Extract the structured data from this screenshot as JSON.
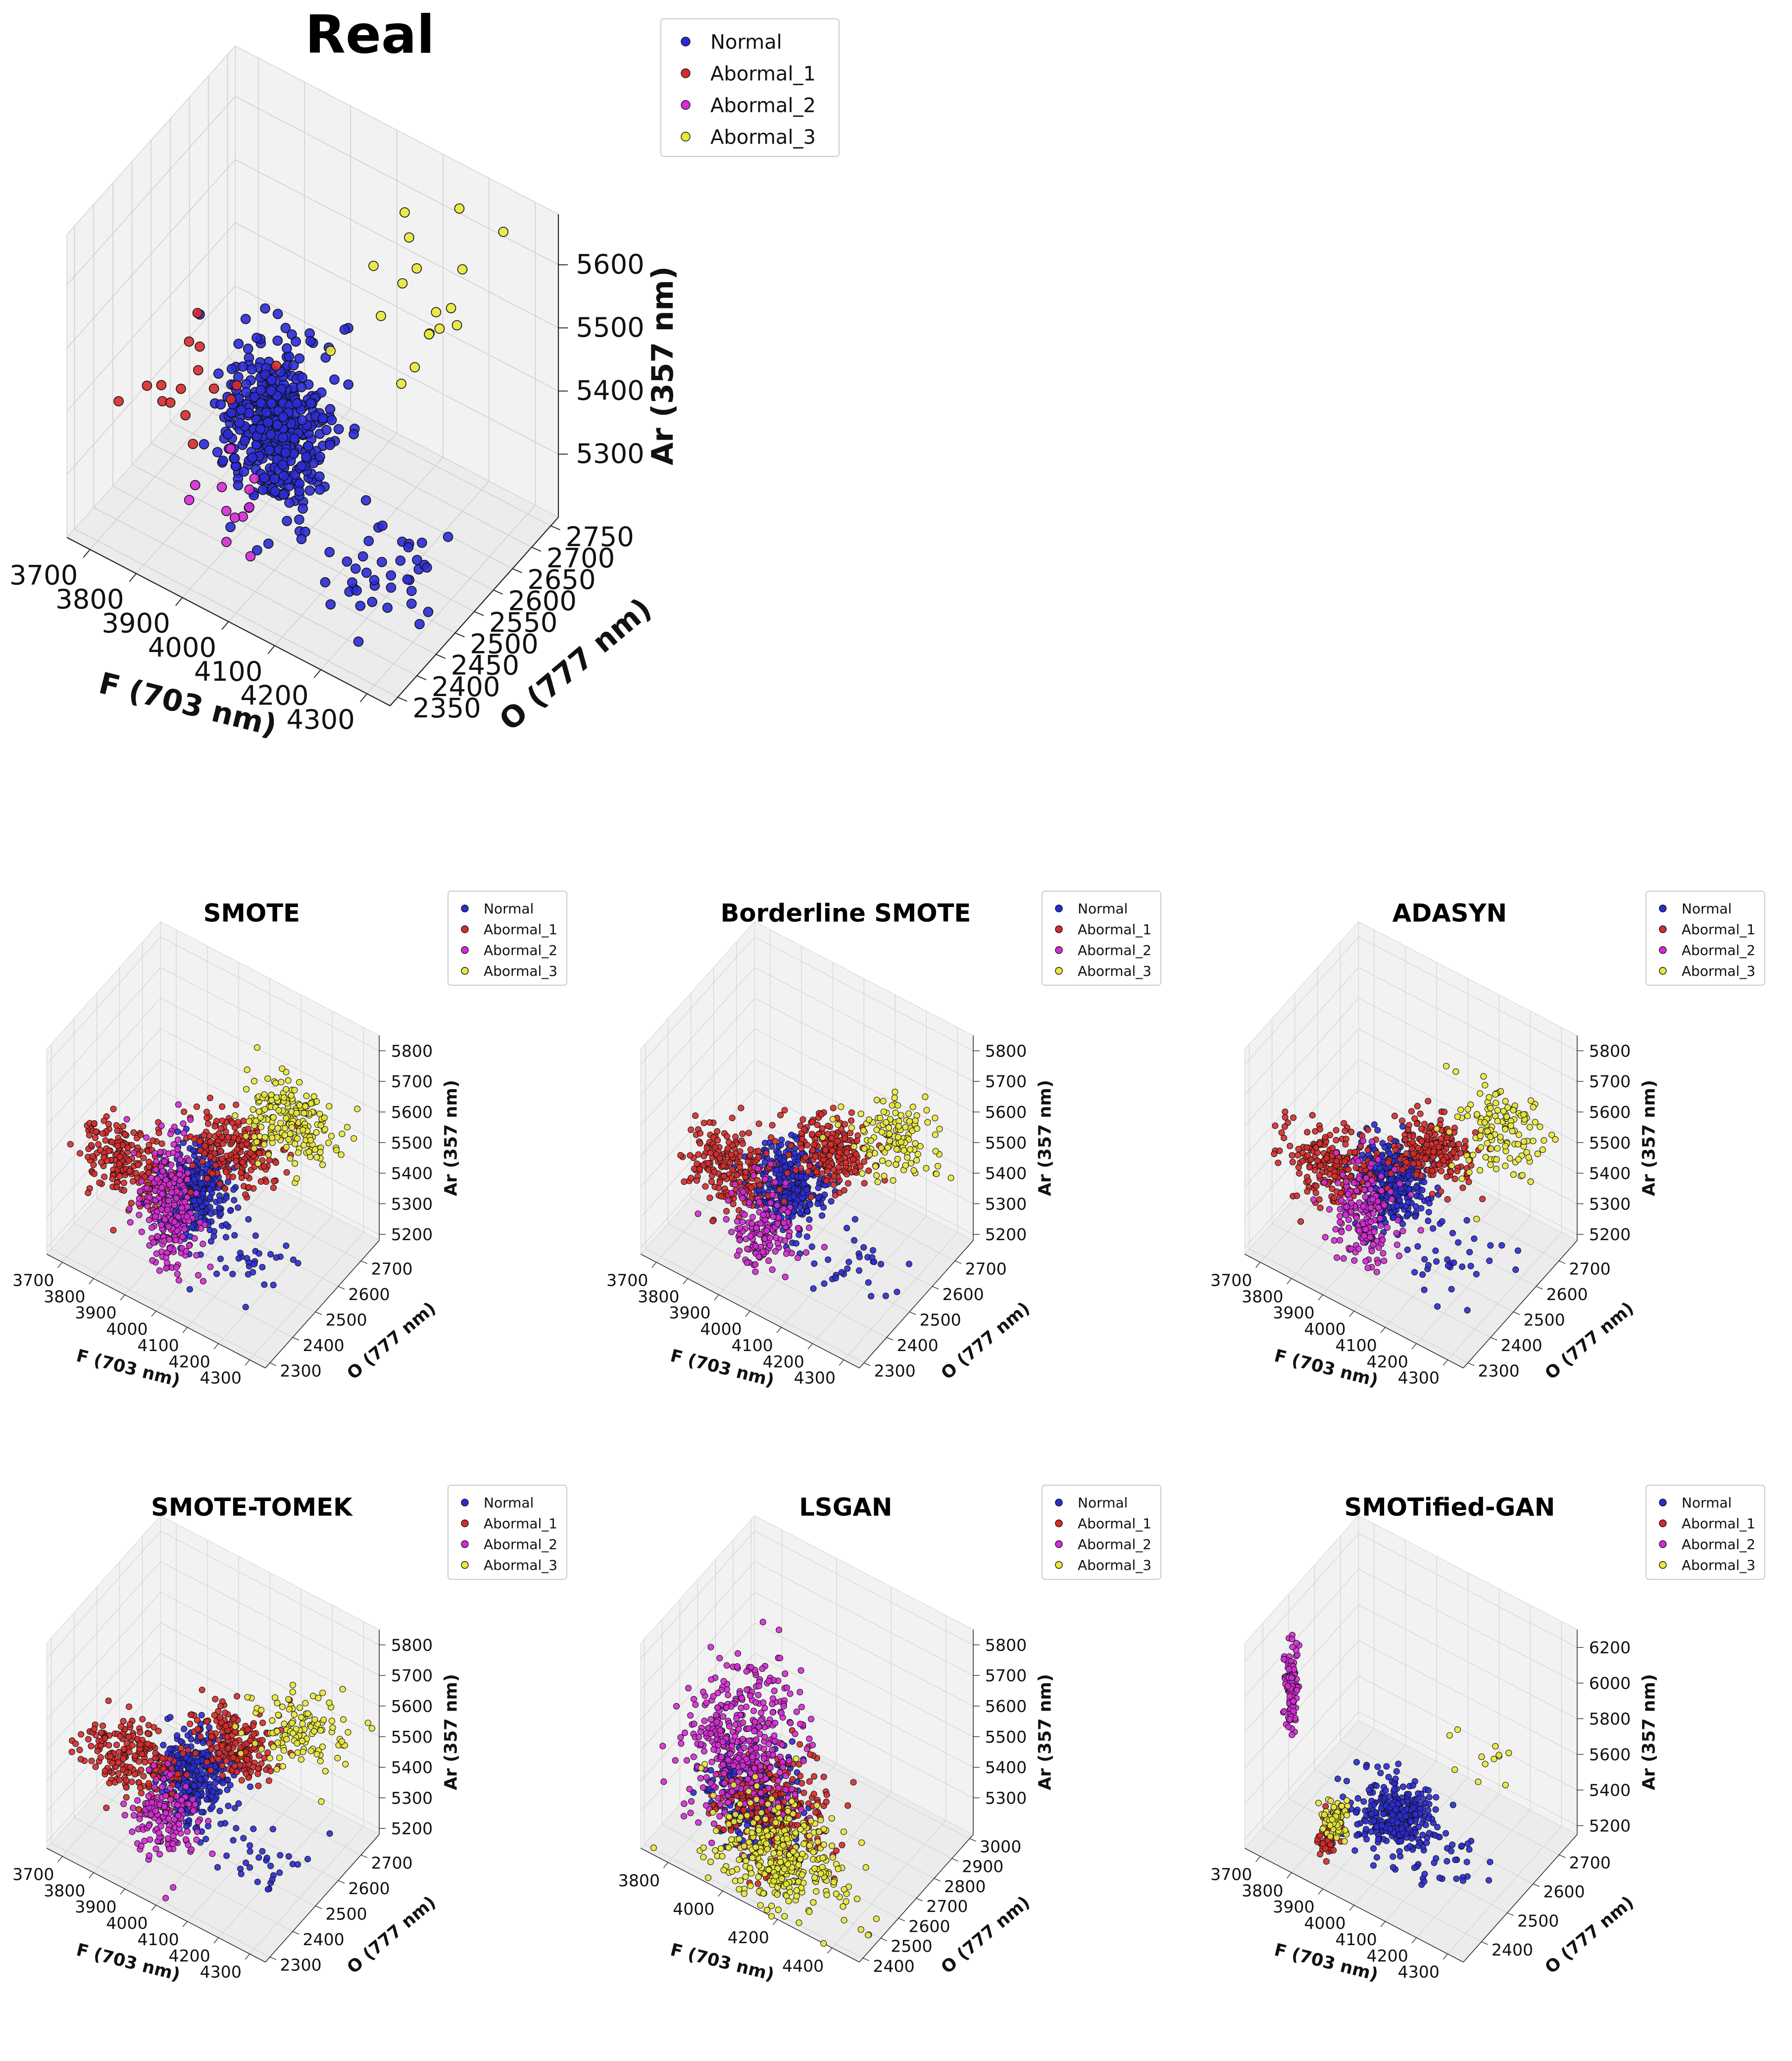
{
  "legend": {
    "entries": [
      "Normal",
      "Abormal_1",
      "Abormal_2",
      "Abormal_3"
    ],
    "colors": [
      "#2b2bd6",
      "#d62b2b",
      "#d62bd6",
      "#e8e83a"
    ]
  },
  "chart_data": [
    {
      "type": "scatter",
      "title": "Real",
      "xlabel": "F (703 nm)",
      "ylabel": "O (777 nm)",
      "zlabel": "Ar (357 nm)",
      "xticks": [
        "3700",
        "3800",
        "3900",
        "4000",
        "4100",
        "4200",
        "4300"
      ],
      "yticks": [
        "2350",
        "2400",
        "2450",
        "2500",
        "2550",
        "2600",
        "2650",
        "2700",
        "2750"
      ],
      "zticks": [
        "5300",
        "5400",
        "5500",
        "5600"
      ],
      "xlim": [
        3650,
        4350
      ],
      "ylim": [
        2330,
        2770
      ],
      "zlim": [
        5200,
        5680
      ],
      "series": [
        {
          "name": "Normal",
          "clusters": [
            {
              "cx": 3980,
              "cy": 2480,
              "cz": 5400,
              "sx": 50,
              "sy": 40,
              "sz": 55,
              "n": 420
            },
            {
              "cx": 4150,
              "cy": 2520,
              "cz": 5215,
              "sx": 60,
              "sy": 60,
              "sz": 12,
              "n": 40
            }
          ]
        },
        {
          "name": "Abormal_1",
          "clusters": [
            {
              "cx": 3800,
              "cy": 2450,
              "cz": 5420,
              "sx": 60,
              "sy": 40,
              "sz": 40,
              "n": 16
            }
          ]
        },
        {
          "name": "Abormal_2",
          "clusters": [
            {
              "cx": 3930,
              "cy": 2420,
              "cz": 5300,
              "sx": 50,
              "sy": 40,
              "sz": 40,
              "n": 12
            }
          ]
        },
        {
          "name": "Abormal_3",
          "clusters": [
            {
              "cx": 4180,
              "cy": 2620,
              "cz": 5590,
              "sx": 80,
              "sy": 60,
              "sz": 40,
              "n": 18
            }
          ]
        }
      ]
    },
    {
      "type": "scatter",
      "title": "SMOTE",
      "xlabel": "F (703 nm)",
      "ylabel": "O (777 nm)",
      "zlabel": "Ar (357 nm)",
      "xticks": [
        "3700",
        "3800",
        "3900",
        "4000",
        "4100",
        "4200",
        "4300"
      ],
      "yticks": [
        "2300",
        "2400",
        "2500",
        "2600",
        "2700"
      ],
      "zticks": [
        "5200",
        "5300",
        "5400",
        "5500",
        "5600",
        "5700",
        "5800"
      ],
      "xlim": [
        3650,
        4350
      ],
      "ylim": [
        2280,
        2780
      ],
      "zlim": [
        5180,
        5850
      ],
      "series": [
        {
          "name": "Normal",
          "clusters": [
            {
              "cx": 3980,
              "cy": 2480,
              "cz": 5400,
              "sx": 50,
              "sy": 40,
              "sz": 60,
              "n": 330
            },
            {
              "cx": 4150,
              "cy": 2520,
              "cz": 5210,
              "sx": 60,
              "sy": 60,
              "sz": 12,
              "n": 30
            }
          ]
        },
        {
          "name": "Abormal_1",
          "clusters": [
            {
              "cx": 3780,
              "cy": 2440,
              "cz": 5420,
              "sx": 70,
              "sy": 40,
              "sz": 50,
              "n": 200
            },
            {
              "cx": 4050,
              "cy": 2560,
              "cz": 5500,
              "sx": 70,
              "sy": 40,
              "sz": 40,
              "n": 200
            }
          ]
        },
        {
          "name": "Abormal_2",
          "clusters": [
            {
              "cx": 3930,
              "cy": 2430,
              "cz": 5350,
              "sx": 40,
              "sy": 30,
              "sz": 110,
              "n": 250
            }
          ]
        },
        {
          "name": "Abormal_3",
          "clusters": [
            {
              "cx": 4180,
              "cy": 2620,
              "cz": 5620,
              "sx": 70,
              "sy": 50,
              "sz": 45,
              "n": 200
            }
          ]
        }
      ]
    },
    {
      "type": "scatter",
      "title": "Borderline SMOTE",
      "xlabel": "F (703 nm)",
      "ylabel": "O (777 nm)",
      "zlabel": "Ar (357 nm)",
      "xticks": [
        "3700",
        "3800",
        "3900",
        "4000",
        "4100",
        "4200",
        "4300"
      ],
      "yticks": [
        "2300",
        "2400",
        "2500",
        "2600",
        "2700"
      ],
      "zticks": [
        "5200",
        "5300",
        "5400",
        "5500",
        "5600",
        "5700",
        "5800"
      ],
      "xlim": [
        3650,
        4350
      ],
      "ylim": [
        2280,
        2780
      ],
      "zlim": [
        5180,
        5850
      ],
      "series": [
        {
          "name": "Normal",
          "clusters": [
            {
              "cx": 3980,
              "cy": 2480,
              "cz": 5420,
              "sx": 50,
              "sy": 40,
              "sz": 60,
              "n": 330
            },
            {
              "cx": 4150,
              "cy": 2520,
              "cz": 5210,
              "sx": 60,
              "sy": 60,
              "sz": 12,
              "n": 30
            }
          ]
        },
        {
          "name": "Abormal_1",
          "clusters": [
            {
              "cx": 3820,
              "cy": 2440,
              "cz": 5420,
              "sx": 70,
              "sy": 40,
              "sz": 45,
              "n": 200
            },
            {
              "cx": 4050,
              "cy": 2560,
              "cz": 5500,
              "sx": 60,
              "sy": 40,
              "sz": 40,
              "n": 200
            }
          ]
        },
        {
          "name": "Abormal_2",
          "clusters": [
            {
              "cx": 3940,
              "cy": 2420,
              "cz": 5300,
              "sx": 50,
              "sy": 40,
              "sz": 60,
              "n": 150
            }
          ]
        },
        {
          "name": "Abormal_3",
          "clusters": [
            {
              "cx": 4200,
              "cy": 2640,
              "cz": 5560,
              "sx": 70,
              "sy": 50,
              "sz": 40,
              "n": 120
            }
          ]
        }
      ]
    },
    {
      "type": "scatter",
      "title": "ADASYN",
      "xlabel": "F (703 nm)",
      "ylabel": "O (777 nm)",
      "zlabel": "Ar (357 nm)",
      "xticks": [
        "3700",
        "3800",
        "3900",
        "4000",
        "4100",
        "4200",
        "4300"
      ],
      "yticks": [
        "2300",
        "2400",
        "2500",
        "2600",
        "2700"
      ],
      "zticks": [
        "5200",
        "5300",
        "5400",
        "5500",
        "5600",
        "5700",
        "5800"
      ],
      "xlim": [
        3650,
        4350
      ],
      "ylim": [
        2280,
        2780
      ],
      "zlim": [
        5180,
        5850
      ],
      "series": [
        {
          "name": "Normal",
          "clusters": [
            {
              "cx": 3980,
              "cy": 2480,
              "cz": 5420,
              "sx": 50,
              "sy": 40,
              "sz": 60,
              "n": 330
            },
            {
              "cx": 4150,
              "cy": 2520,
              "cz": 5210,
              "sx": 60,
              "sy": 60,
              "sz": 12,
              "n": 30
            }
          ]
        },
        {
          "name": "Abormal_1",
          "clusters": [
            {
              "cx": 3800,
              "cy": 2440,
              "cz": 5420,
              "sx": 70,
              "sy": 40,
              "sz": 45,
              "n": 200
            },
            {
              "cx": 4050,
              "cy": 2560,
              "cz": 5500,
              "sx": 60,
              "sy": 40,
              "sz": 40,
              "n": 200
            }
          ]
        },
        {
          "name": "Abormal_2",
          "clusters": [
            {
              "cx": 3930,
              "cy": 2420,
              "cz": 5330,
              "sx": 45,
              "sy": 35,
              "sz": 80,
              "n": 180
            }
          ]
        },
        {
          "name": "Abormal_3",
          "clusters": [
            {
              "cx": 4200,
              "cy": 2640,
              "cz": 5580,
              "sx": 70,
              "sy": 50,
              "sz": 40,
              "n": 130
            }
          ]
        }
      ]
    },
    {
      "type": "scatter",
      "title": "SMOTE-TOMEK",
      "xlabel": "F (703 nm)",
      "ylabel": "O (777 nm)",
      "zlabel": "Ar (357 nm)",
      "xticks": [
        "3700",
        "3800",
        "3900",
        "4000",
        "4100",
        "4200",
        "4300"
      ],
      "yticks": [
        "2300",
        "2400",
        "2500",
        "2600",
        "2700"
      ],
      "zticks": [
        "5200",
        "5300",
        "5400",
        "5500",
        "5600",
        "5700",
        "5800"
      ],
      "xlim": [
        3650,
        4350
      ],
      "ylim": [
        2280,
        2780
      ],
      "zlim": [
        5180,
        5850
      ],
      "series": [
        {
          "name": "Normal",
          "clusters": [
            {
              "cx": 3980,
              "cy": 2480,
              "cz": 5420,
              "sx": 50,
              "sy": 40,
              "sz": 60,
              "n": 330
            },
            {
              "cx": 4150,
              "cy": 2520,
              "cz": 5210,
              "sx": 60,
              "sy": 60,
              "sz": 12,
              "n": 30
            }
          ]
        },
        {
          "name": "Abormal_1",
          "clusters": [
            {
              "cx": 3800,
              "cy": 2440,
              "cz": 5420,
              "sx": 70,
              "sy": 40,
              "sz": 45,
              "n": 200
            },
            {
              "cx": 4050,
              "cy": 2560,
              "cz": 5500,
              "sx": 60,
              "sy": 40,
              "sz": 40,
              "n": 200
            }
          ]
        },
        {
          "name": "Abormal_2",
          "clusters": [
            {
              "cx": 3930,
              "cy": 2420,
              "cz": 5300,
              "sx": 50,
              "sy": 40,
              "sz": 60,
              "n": 150
            }
          ]
        },
        {
          "name": "Abormal_3",
          "clusters": [
            {
              "cx": 4200,
              "cy": 2640,
              "cz": 5560,
              "sx": 70,
              "sy": 50,
              "sz": 40,
              "n": 120
            }
          ]
        }
      ]
    },
    {
      "type": "scatter",
      "title": "LSGAN",
      "xlabel": "F (703 nm)",
      "ylabel": "O (777 nm)",
      "zlabel": "Ar (357 nm)",
      "xticks": [
        "3800",
        "4000",
        "4200",
        "4400"
      ],
      "yticks": [
        "2400",
        "2500",
        "2600",
        "2700",
        "2800",
        "2900",
        "3000"
      ],
      "zticks": [
        "5300",
        "5400",
        "5500",
        "5600",
        "5700",
        "5800"
      ],
      "xlim": [
        3700,
        4500
      ],
      "ylim": [
        2380,
        3020
      ],
      "zlim": [
        5180,
        5850
      ],
      "series": [
        {
          "name": "Normal",
          "clusters": [
            {
              "cx": 3980,
              "cy": 2560,
              "cz": 5350,
              "sx": 70,
              "sy": 60,
              "sz": 60,
              "n": 250
            }
          ]
        },
        {
          "name": "Abormal_1",
          "clusters": [
            {
              "cx": 4050,
              "cy": 2600,
              "cz": 5340,
              "sx": 90,
              "sy": 80,
              "sz": 70,
              "n": 250
            }
          ]
        },
        {
          "name": "Abormal_2",
          "clusters": [
            {
              "cx": 3900,
              "cy": 2650,
              "cz": 5450,
              "sx": 80,
              "sy": 100,
              "sz": 110,
              "n": 400
            }
          ]
        },
        {
          "name": "Abormal_3",
          "clusters": [
            {
              "cx": 4150,
              "cy": 2500,
              "cz": 5280,
              "sx": 110,
              "sy": 90,
              "sz": 70,
              "n": 350
            }
          ]
        }
      ]
    },
    {
      "type": "scatter",
      "title": "SMOTified-GAN",
      "xlabel": "F (703 nm)",
      "ylabel": "O (777 nm)",
      "zlabel": "Ar (357 nm)",
      "xticks": [
        "3700",
        "3800",
        "3900",
        "4000",
        "4100",
        "4200",
        "4300"
      ],
      "yticks": [
        "2400",
        "2500",
        "2600",
        "2700"
      ],
      "zticks": [
        "5200",
        "5400",
        "5600",
        "5800",
        "6000",
        "6200"
      ],
      "xlim": [
        3650,
        4350
      ],
      "ylim": [
        2330,
        2770
      ],
      "zlim": [
        5150,
        6300
      ],
      "series": [
        {
          "name": "Normal",
          "clusters": [
            {
              "cx": 4000,
              "cy": 2480,
              "cz": 5400,
              "sx": 60,
              "sy": 40,
              "sz": 55,
              "n": 330
            },
            {
              "cx": 4150,
              "cy": 2520,
              "cz": 5210,
              "sx": 60,
              "sy": 60,
              "sz": 12,
              "n": 30
            }
          ]
        },
        {
          "name": "Abormal_1",
          "clusters": [
            {
              "cx": 3860,
              "cy": 2400,
              "cz": 5300,
              "sx": 15,
              "sy": 12,
              "sz": 50,
              "n": 60
            }
          ]
        },
        {
          "name": "Abormal_2",
          "clusters": [
            {
              "cx": 3740,
              "cy": 2400,
              "cz": 6000,
              "sx": 8,
              "sy": 8,
              "sz": 120,
              "n": 120
            }
          ]
        },
        {
          "name": "Abormal_3",
          "clusters": [
            {
              "cx": 3880,
              "cy": 2400,
              "cz": 5400,
              "sx": 15,
              "sy": 12,
              "sz": 40,
              "n": 80
            },
            {
              "cx": 4150,
              "cy": 2640,
              "cz": 5620,
              "sx": 60,
              "sy": 40,
              "sz": 25,
              "n": 12
            }
          ]
        }
      ]
    }
  ]
}
